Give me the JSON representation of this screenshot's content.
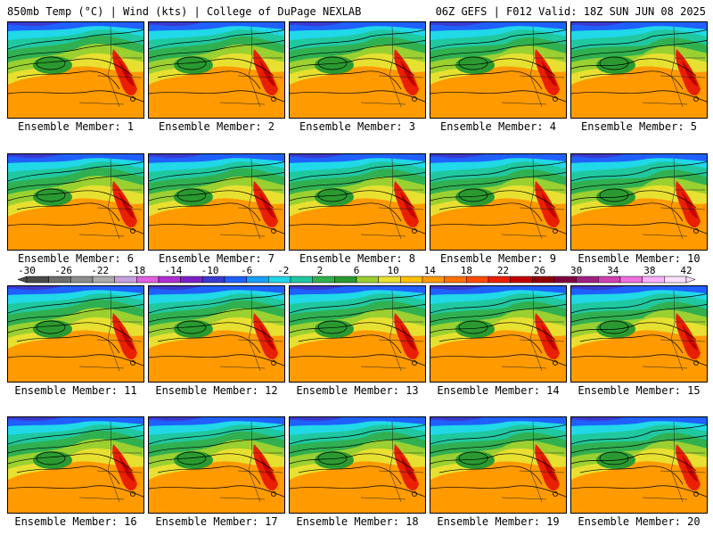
{
  "header": {
    "left": "850mb Temp (°C) | Wind (kts) | College of DuPage NEXLAB",
    "right": "06Z GEFS | F012 Valid: 18Z SUN JUN 08 2025"
  },
  "members": [
    "Ensemble Member: 1",
    "Ensemble Member: 2",
    "Ensemble Member: 3",
    "Ensemble Member: 4",
    "Ensemble Member: 5",
    "Ensemble Member: 6",
    "Ensemble Member: 7",
    "Ensemble Member: 8",
    "Ensemble Member: 9",
    "Ensemble Member: 10",
    "Ensemble Member: 11",
    "Ensemble Member: 12",
    "Ensemble Member: 13",
    "Ensemble Member: 14",
    "Ensemble Member: 15",
    "Ensemble Member: 16",
    "Ensemble Member: 17",
    "Ensemble Member: 18",
    "Ensemble Member: 19",
    "Ensemble Member: 20"
  ],
  "colorbar": {
    "ticks": [
      "-30",
      "-26",
      "-22",
      "-18",
      "-14",
      "-10",
      "-6",
      "-2",
      "2",
      "6",
      "10",
      "14",
      "18",
      "22",
      "26",
      "30",
      "34",
      "38",
      "42"
    ],
    "colors": [
      "#4a4a4a",
      "#6e6e6e",
      "#8c8c8c",
      "#ababab",
      "#c8a0e0",
      "#e060e0",
      "#b030d0",
      "#7a20c8",
      "#3a3ad0",
      "#2060ff",
      "#1aa0ff",
      "#20d8e8",
      "#20c8a0",
      "#30b050",
      "#2a9a30",
      "#9ad030",
      "#e8e030",
      "#ffc000",
      "#ff9a00",
      "#ff7000",
      "#ff4a00",
      "#e82000",
      "#c00000",
      "#900000",
      "#800040",
      "#a02080",
      "#d040b0",
      "#f070e0",
      "#ffb0ff",
      "#ffe0ff"
    ]
  }
}
